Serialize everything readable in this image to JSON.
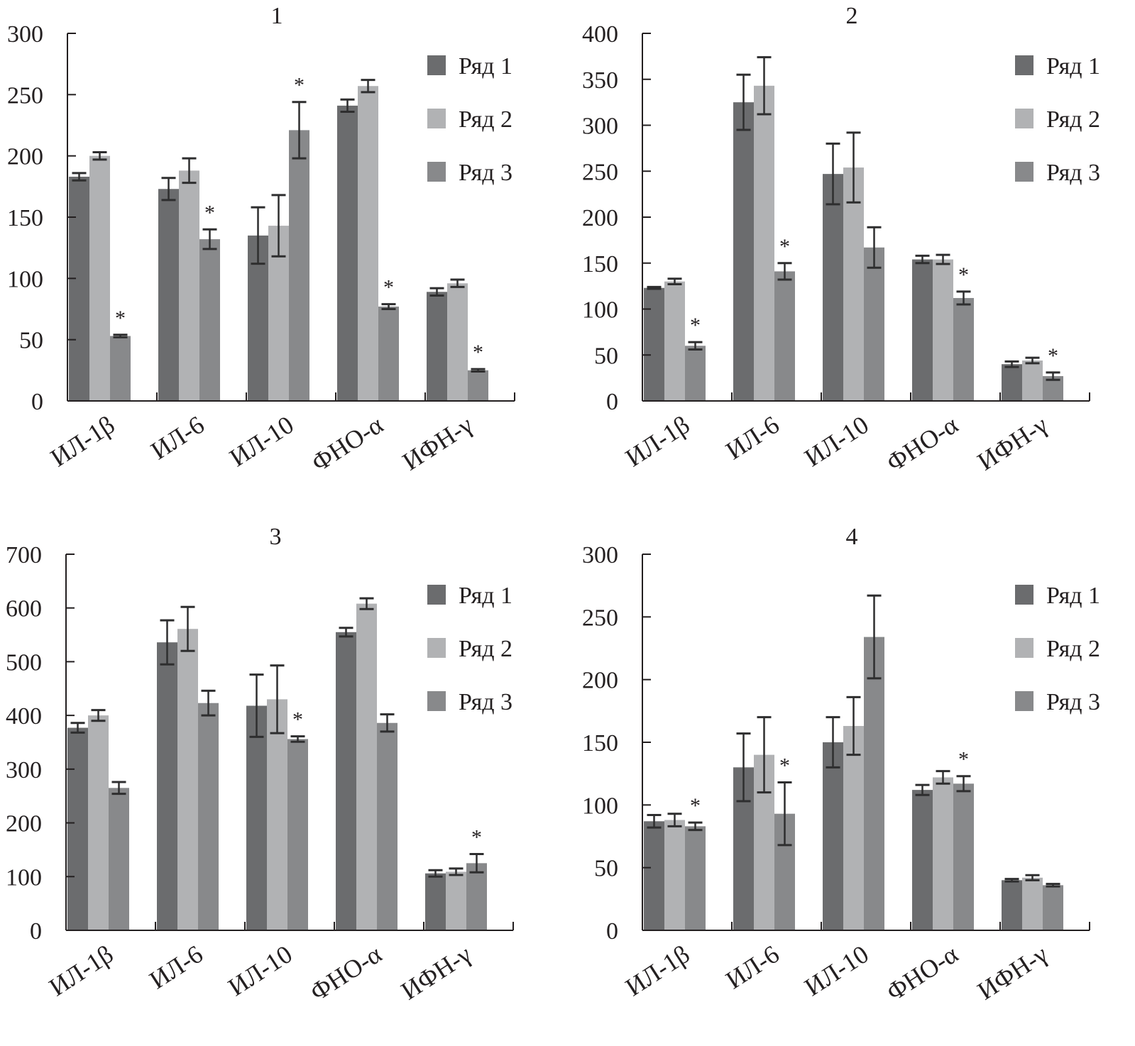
{
  "chart_data": [
    {
      "type": "bar",
      "title": "1",
      "categories": [
        "ИЛ-1β",
        "ИЛ-6",
        "ИЛ-10",
        "ФНО-α",
        "ИФН-γ"
      ],
      "ylim": [
        0,
        300
      ],
      "yticks": [
        0,
        50,
        100,
        150,
        200,
        250,
        300
      ],
      "legend": "top-right",
      "series": [
        {
          "name": "Ряд 1",
          "values": [
            183,
            173,
            135,
            241,
            89
          ],
          "errors": [
            3,
            9,
            23,
            5,
            3
          ]
        },
        {
          "name": "Ряд 2",
          "values": [
            200,
            188,
            143,
            257,
            96
          ],
          "errors": [
            3,
            10,
            25,
            5,
            3
          ]
        },
        {
          "name": "Ряд 3",
          "values": [
            53,
            132,
            221,
            77,
            25
          ],
          "errors": [
            1,
            8,
            23,
            2,
            1
          ],
          "significant": [
            true,
            true,
            true,
            true,
            true
          ]
        }
      ]
    },
    {
      "type": "bar",
      "title": "2",
      "categories": [
        "ИЛ-1β",
        "ИЛ-6",
        "ИЛ-10",
        "ФНО-α",
        "ИФН-γ"
      ],
      "ylim": [
        0,
        400
      ],
      "yticks": [
        0,
        50,
        100,
        150,
        200,
        250,
        300,
        350,
        400
      ],
      "legend": "top-right",
      "series": [
        {
          "name": "Ряд 1",
          "values": [
            123,
            325,
            247,
            154,
            40
          ],
          "errors": [
            1,
            30,
            33,
            4,
            3
          ]
        },
        {
          "name": "Ряд 2",
          "values": [
            130,
            343,
            254,
            154,
            44
          ],
          "errors": [
            3,
            31,
            38,
            5,
            3
          ]
        },
        {
          "name": "Ряд 3",
          "values": [
            60,
            141,
            167,
            112,
            27
          ],
          "errors": [
            4,
            9,
            22,
            7,
            4
          ],
          "significant": [
            true,
            true,
            false,
            true,
            true
          ]
        }
      ]
    },
    {
      "type": "bar",
      "title": "3",
      "categories": [
        "ИЛ-1β",
        "ИЛ-6",
        "ИЛ-10",
        "ФНО-α",
        "ИФН-γ"
      ],
      "ylim": [
        0,
        700
      ],
      "yticks": [
        0,
        100,
        200,
        300,
        400,
        500,
        600,
        700
      ],
      "legend": "top-right",
      "series": [
        {
          "name": "Ряд 1",
          "values": [
            377,
            536,
            418,
            555,
            106
          ],
          "errors": [
            9,
            41,
            58,
            8,
            6
          ]
        },
        {
          "name": "Ряд 2",
          "values": [
            400,
            561,
            430,
            608,
            109
          ],
          "errors": [
            10,
            41,
            63,
            10,
            6
          ]
        },
        {
          "name": "Ряд 3",
          "values": [
            265,
            423,
            356,
            386,
            125
          ],
          "errors": [
            11,
            23,
            5,
            16,
            17
          ],
          "significant": [
            false,
            false,
            true,
            false,
            true
          ]
        }
      ]
    },
    {
      "type": "bar",
      "title": "4",
      "categories": [
        "ИЛ-1β",
        "ИЛ-6",
        "ИЛ-10",
        "ФНО-α",
        "ИФН-γ"
      ],
      "ylim": [
        0,
        300
      ],
      "yticks": [
        0,
        50,
        100,
        150,
        200,
        250,
        300
      ],
      "legend": "top-right",
      "series": [
        {
          "name": "Ряд 1",
          "values": [
            87,
            130,
            150,
            112,
            40
          ],
          "errors": [
            5,
            27,
            20,
            4,
            1
          ]
        },
        {
          "name": "Ряд 2",
          "values": [
            88,
            140,
            163,
            122,
            42
          ],
          "errors": [
            5,
            30,
            23,
            5,
            2
          ]
        },
        {
          "name": "Ряд 3",
          "values": [
            83,
            93,
            234,
            117,
            36
          ],
          "errors": [
            3,
            25,
            33,
            6,
            1
          ],
          "significant": [
            true,
            true,
            false,
            true,
            false
          ]
        }
      ]
    }
  ],
  "colors": {
    "series": [
      "#6b6c6e",
      "#b1b2b4",
      "#88898b"
    ],
    "error_bar": "#2e2e2f",
    "axis": "#231f20"
  },
  "significance_marker": "*"
}
